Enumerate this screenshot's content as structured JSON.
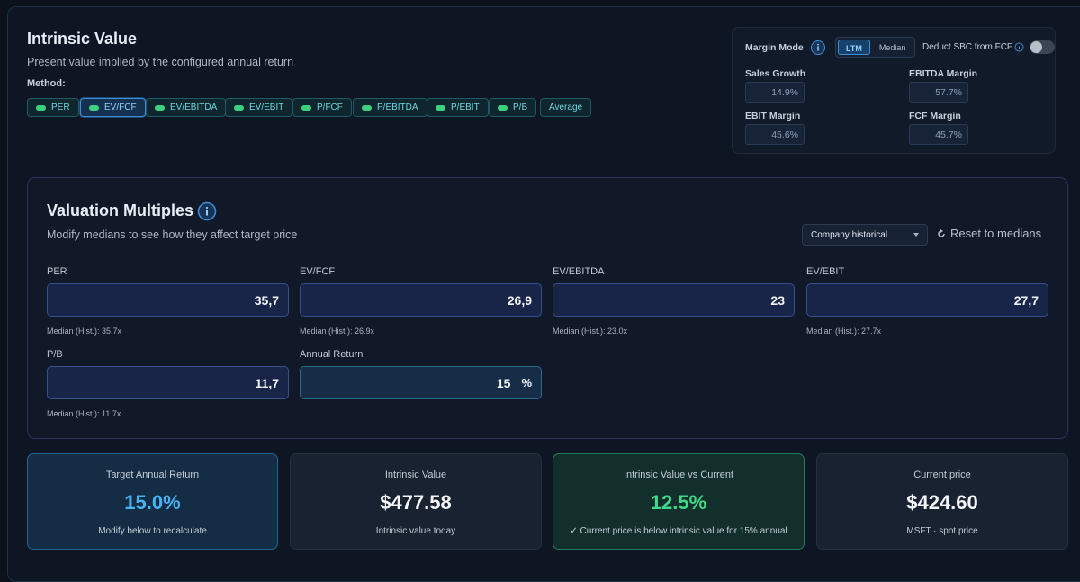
{
  "header": {
    "title": "Intrinsic Value",
    "subtitle": "Present value implied by the configured annual return",
    "method_label": "Method:"
  },
  "methods": [
    {
      "label": "PER",
      "active": false,
      "dot": true
    },
    {
      "label": "EV/FCF",
      "active": true,
      "dot": true
    },
    {
      "label": "EV/EBITDA",
      "active": false,
      "dot": true
    },
    {
      "label": "EV/EBIT",
      "active": false,
      "dot": true
    },
    {
      "label": "P/FCF",
      "active": false,
      "dot": true
    },
    {
      "label": "P/EBITDA",
      "active": false,
      "dot": true
    },
    {
      "label": "P/EBIT",
      "active": false,
      "dot": true
    },
    {
      "label": "P/B",
      "active": false,
      "dot": true
    },
    {
      "label": "Average",
      "active": false,
      "dot": false
    }
  ],
  "margin_panel": {
    "mode_label": "Margin Mode",
    "modes": [
      {
        "label": "LTM",
        "active": true
      },
      {
        "label": "Median",
        "active": false
      }
    ],
    "deduct_sbc_label": "Deduct SBC from FCF",
    "deduct_sbc": false,
    "metrics": [
      {
        "label": "Sales Growth",
        "value": "14.9%"
      },
      {
        "label": "EBITDA Margin",
        "value": "57.7%"
      },
      {
        "label": "EBIT Margin",
        "value": "45.6%"
      },
      {
        "label": "FCF Margin",
        "value": "45.7%"
      }
    ]
  },
  "multiples": {
    "title": "Valuation Multiples",
    "subtitle": "Modify medians to see how they affect target price",
    "source": "Company historical",
    "reset": "Reset to medians",
    "fields": [
      {
        "label": "PER",
        "value": "35,7",
        "median": "Median (Hist.): 35.7x"
      },
      {
        "label": "EV/FCF",
        "value": "26,9",
        "median": "Median (Hist.): 26.9x"
      },
      {
        "label": "EV/EBITDA",
        "value": "23",
        "median": "Median (Hist.): 23.0x"
      },
      {
        "label": "EV/EBIT",
        "value": "27,7",
        "median": "Median (Hist.): 27.7x"
      },
      {
        "label": "P/B",
        "value": "11,7",
        "median": "Median (Hist.): 11.7x"
      }
    ],
    "annual_return": {
      "label": "Annual Return",
      "value": "15",
      "unit": "%"
    }
  },
  "cards": [
    {
      "title": "Target Annual Return",
      "value": "15.0%",
      "note": "Modify below to recalculate",
      "style": "blue"
    },
    {
      "title": "Intrinsic Value",
      "value": "$477.58",
      "note": "Intrinsic value today",
      "style": "plain"
    },
    {
      "title": "Intrinsic Value vs Current",
      "value": "12.5%",
      "note": "✓ Current price is below intrinsic value for 15% annual",
      "style": "green"
    },
    {
      "title": "Current price",
      "value": "$424.60",
      "note": "MSFT · spot price",
      "style": "plain"
    }
  ]
}
